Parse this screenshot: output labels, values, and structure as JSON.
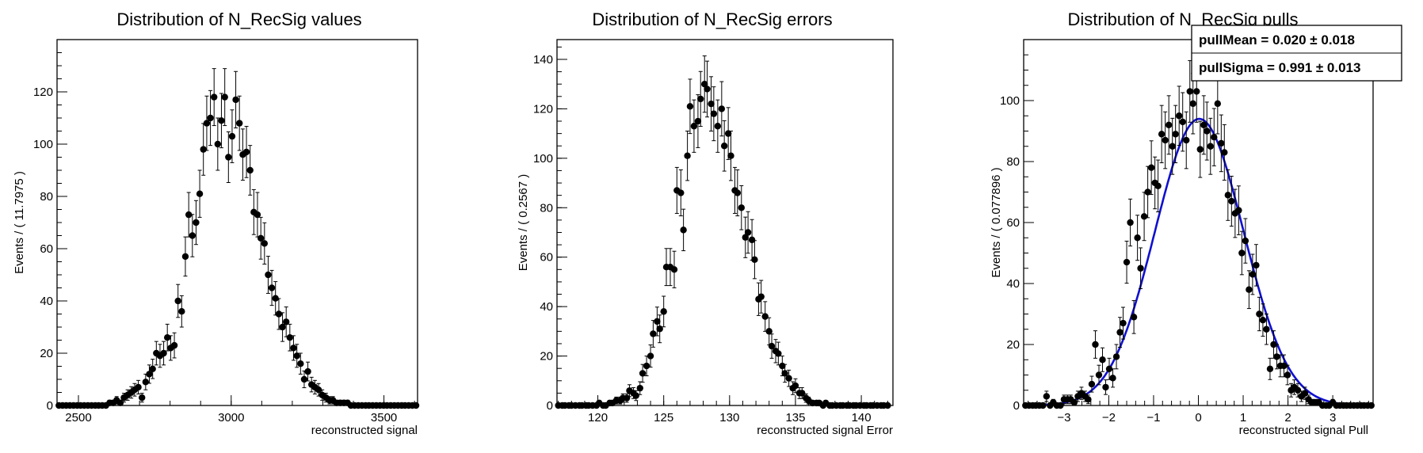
{
  "chart_data": [
    {
      "type": "scatter",
      "title": "Distribution of N_RecSig values",
      "xlabel": "reconstructed signal",
      "ylabel": "Events / ( 11.7975 )",
      "xlim": [
        2430,
        3610
      ],
      "ylim": [
        0,
        140
      ],
      "xticks": [
        2500,
        3000,
        3500
      ],
      "yticks": [
        0,
        20,
        40,
        60,
        80,
        100,
        120
      ],
      "series": [
        {
          "x": [
            2436,
            2448,
            2460,
            2472,
            2484,
            2496,
            2507,
            2519,
            2531,
            2543,
            2555,
            2566,
            2578,
            2590,
            2602,
            2614,
            2625,
            2637,
            2649,
            2661,
            2673,
            2684,
            2696,
            2708,
            2720,
            2732,
            2743,
            2755,
            2767,
            2779,
            2791,
            2802,
            2814,
            2826,
            2838,
            2850,
            2861,
            2873,
            2885,
            2897,
            2909,
            2920,
            2932,
            2944,
            2956,
            2968,
            2979,
            2991,
            3003,
            3015,
            3027,
            3038,
            3050,
            3062,
            3074,
            3086,
            3097,
            3109,
            3121,
            3133,
            3145,
            3156,
            3168,
            3180,
            3192,
            3204,
            3215,
            3227,
            3239,
            3251,
            3263,
            3274,
            3286,
            3298,
            3310,
            3322,
            3333,
            3345,
            3357,
            3369,
            3381,
            3392,
            3404,
            3416,
            3428,
            3440,
            3451,
            3463,
            3475,
            3487,
            3499,
            3510,
            3522,
            3534,
            3546,
            3558,
            3569,
            3581,
            3593,
            3605
          ],
          "y": [
            0,
            0,
            0,
            0,
            0,
            0,
            0,
            0,
            0,
            0,
            0,
            0,
            0,
            0,
            1,
            1,
            2,
            1,
            3,
            4,
            5,
            6,
            7,
            3,
            9,
            12,
            14,
            20,
            19,
            20,
            26,
            22,
            23,
            40,
            36,
            57,
            73,
            65,
            70,
            81,
            98,
            108,
            110,
            118,
            100,
            109,
            118,
            95,
            103,
            117,
            108,
            96,
            97,
            90,
            74,
            73,
            64,
            62,
            50,
            45,
            41,
            35,
            30,
            32,
            26,
            22,
            19,
            16,
            10,
            13,
            8,
            7,
            6,
            4,
            3,
            2,
            2,
            1,
            1,
            1,
            1,
            0,
            0,
            0,
            0,
            0,
            0,
            0,
            0,
            0,
            0,
            0,
            0,
            0,
            0,
            0,
            0,
            0,
            0,
            0
          ],
          "yerr": [
            0,
            0,
            0,
            0,
            0,
            0,
            0,
            0,
            0,
            0,
            0,
            0,
            0,
            0,
            1,
            1,
            1.4,
            1,
            1.7,
            2,
            2.2,
            2.4,
            2.6,
            1.7,
            3,
            3.5,
            3.7,
            4.5,
            4.4,
            4.5,
            5.1,
            4.7,
            4.8,
            6.3,
            6,
            7.5,
            8.5,
            8.1,
            8.4,
            9,
            9.9,
            10.4,
            10.5,
            10.9,
            10,
            10.4,
            10.9,
            9.7,
            10.1,
            10.8,
            10.4,
            9.8,
            9.8,
            9.5,
            8.6,
            8.5,
            8,
            7.9,
            7.1,
            6.7,
            6.4,
            5.9,
            5.5,
            5.7,
            5.1,
            4.7,
            4.4,
            4,
            3.2,
            3.6,
            2.8,
            2.6,
            2.4,
            2,
            1.7,
            1.4,
            1.4,
            1,
            1,
            1,
            1,
            0,
            0,
            0,
            0,
            0,
            0,
            0,
            0,
            0,
            0,
            0,
            0,
            0,
            0,
            0,
            0,
            0,
            0,
            0
          ]
        }
      ]
    },
    {
      "type": "scatter",
      "title": "Distribution of N_RecSig errors",
      "xlabel": "reconstructed signal Error",
      "ylabel": "Events / ( 0.2567 )",
      "xlim": [
        116.9,
        142.4
      ],
      "ylim": [
        0,
        148
      ],
      "xticks": [
        120,
        125,
        130,
        135,
        140
      ],
      "yticks": [
        0,
        20,
        40,
        60,
        80,
        100,
        120,
        140
      ],
      "series": [
        {
          "x": [
            117.0,
            117.3,
            117.5,
            117.8,
            118.0,
            118.3,
            118.6,
            118.8,
            119.1,
            119.3,
            119.6,
            119.9,
            120.1,
            120.4,
            120.6,
            120.9,
            121.1,
            121.4,
            121.7,
            121.9,
            122.2,
            122.4,
            122.7,
            122.9,
            123.2,
            123.4,
            123.7,
            124.0,
            124.2,
            124.5,
            124.7,
            125.0,
            125.2,
            125.5,
            125.8,
            126.0,
            126.3,
            126.5,
            126.8,
            127.0,
            127.3,
            127.6,
            127.8,
            128.1,
            128.3,
            128.6,
            128.8,
            129.1,
            129.4,
            129.6,
            129.9,
            130.1,
            130.4,
            130.6,
            130.9,
            131.2,
            131.4,
            131.7,
            131.9,
            132.2,
            132.4,
            132.7,
            133.0,
            133.2,
            133.5,
            133.7,
            134.0,
            134.2,
            134.5,
            134.8,
            135.0,
            135.3,
            135.5,
            135.8,
            136.0,
            136.3,
            136.6,
            136.8,
            137.1,
            137.3,
            137.6,
            137.8,
            138.1,
            138.4,
            138.6,
            138.9,
            139.1,
            139.4,
            139.6,
            139.9,
            140.2,
            140.4,
            140.7,
            140.9,
            141.2,
            141.5,
            141.7,
            142.0
          ],
          "y": [
            0,
            0,
            0,
            0,
            0,
            0,
            0,
            0,
            0,
            0,
            0,
            0,
            1,
            0,
            0,
            1,
            1,
            2,
            2,
            3,
            3,
            6,
            5,
            4,
            7,
            13,
            16,
            20,
            29,
            34,
            31,
            38,
            56,
            56,
            55,
            87,
            86,
            71,
            101,
            121,
            113,
            115,
            124,
            130,
            128,
            122,
            118,
            113,
            120,
            105,
            110,
            101,
            87,
            86,
            80,
            68,
            70,
            67,
            59,
            43,
            44,
            36,
            30,
            24,
            22,
            21,
            16,
            13,
            11,
            7,
            8,
            5,
            5,
            3,
            2,
            1,
            1,
            1,
            0,
            1,
            0,
            0,
            0,
            0,
            0,
            0,
            0,
            0,
            0,
            0,
            0,
            0,
            0,
            0,
            0,
            0,
            0,
            0
          ],
          "yerr": [
            0,
            0,
            0,
            0,
            0,
            0,
            0,
            0,
            0,
            0,
            0,
            0,
            1,
            0,
            0,
            1,
            1,
            1.4,
            1.4,
            1.7,
            1.7,
            2.4,
            2.2,
            2,
            2.6,
            3.6,
            4,
            4.5,
            5.4,
            5.8,
            5.6,
            6.2,
            7.5,
            7.5,
            7.4,
            9.3,
            9.3,
            8.4,
            10,
            11,
            10.6,
            10.7,
            11.1,
            11.4,
            11.3,
            11,
            10.9,
            10.6,
            11,
            10.2,
            10.5,
            10,
            9.3,
            9.3,
            8.9,
            8.2,
            8.4,
            8.2,
            7.7,
            6.6,
            6.6,
            6,
            5.5,
            4.9,
            4.7,
            4.6,
            4,
            3.6,
            3.3,
            2.6,
            2.8,
            2.2,
            2.2,
            1.7,
            1.4,
            1,
            1,
            1,
            0,
            1,
            0,
            0,
            0,
            0,
            0,
            0,
            0,
            0,
            0,
            0,
            0,
            0,
            0,
            0,
            0,
            0,
            0,
            0
          ]
        }
      ]
    },
    {
      "type": "scatter",
      "title": "Distribution of N_RecSig pulls",
      "xlabel": "reconstructed signal Pull",
      "ylabel": "Events / ( 0.077896 )",
      "xlim": [
        -3.9,
        3.9
      ],
      "ylim": [
        0,
        120
      ],
      "xticks": [
        -3,
        -2,
        -1,
        0,
        1,
        2,
        3
      ],
      "yticks": [
        0,
        20,
        40,
        60,
        80,
        100
      ],
      "fit": {
        "mean": 0.02,
        "sigma": 0.991,
        "peak": 94,
        "color": "#1010d0"
      },
      "stats": [
        {
          "label": "pullMean =  0.020 ± 0.018"
        },
        {
          "label": "pullSigma =  0.991 ± 0.013"
        }
      ],
      "series": [
        {
          "x": [
            -3.86,
            -3.78,
            -3.7,
            -3.63,
            -3.55,
            -3.47,
            -3.39,
            -3.31,
            -3.24,
            -3.16,
            -3.08,
            -3.0,
            -2.92,
            -2.85,
            -2.77,
            -2.69,
            -2.61,
            -2.53,
            -2.46,
            -2.38,
            -2.3,
            -2.22,
            -2.14,
            -2.07,
            -1.99,
            -1.91,
            -1.83,
            -1.75,
            -1.68,
            -1.6,
            -1.52,
            -1.44,
            -1.36,
            -1.29,
            -1.21,
            -1.13,
            -1.05,
            -0.97,
            -0.9,
            -0.82,
            -0.74,
            -0.66,
            -0.58,
            -0.51,
            -0.43,
            -0.35,
            -0.27,
            -0.19,
            -0.12,
            -0.04,
            0.04,
            0.12,
            0.19,
            0.27,
            0.35,
            0.43,
            0.51,
            0.58,
            0.66,
            0.74,
            0.82,
            0.9,
            0.97,
            1.05,
            1.13,
            1.21,
            1.29,
            1.36,
            1.44,
            1.52,
            1.6,
            1.68,
            1.75,
            1.83,
            1.91,
            1.99,
            2.07,
            2.14,
            2.22,
            2.3,
            2.38,
            2.46,
            2.53,
            2.61,
            2.69,
            2.77,
            2.85,
            2.92,
            3.0,
            3.08,
            3.16,
            3.24,
            3.31,
            3.39,
            3.47,
            3.55,
            3.63,
            3.7,
            3.78,
            3.86
          ],
          "y": [
            0,
            0,
            0,
            0,
            0,
            0,
            3,
            0,
            1,
            0,
            0,
            2,
            2,
            2,
            1,
            3,
            4,
            3,
            2,
            7,
            20,
            10,
            15,
            6,
            12,
            9,
            16,
            24,
            27,
            47,
            60,
            29,
            55,
            45,
            62,
            70,
            78,
            73,
            72,
            89,
            87,
            92,
            85,
            89,
            95,
            93,
            87,
            103,
            99,
            103,
            84,
            92,
            90,
            85,
            88,
            99,
            86,
            83,
            69,
            67,
            63,
            64,
            50,
            54,
            38,
            43,
            46,
            30,
            28,
            25,
            12,
            20,
            16,
            13,
            13,
            10,
            5,
            6,
            5,
            3,
            4,
            2,
            1,
            1,
            1,
            0,
            0,
            0,
            1,
            0,
            0,
            0,
            0,
            0,
            0,
            0,
            0,
            0,
            0,
            0
          ],
          "yerr": [
            0,
            0,
            0,
            0,
            0,
            0,
            1.7,
            0,
            1,
            0,
            0,
            1.4,
            1.4,
            1.4,
            1,
            1.7,
            2,
            1.7,
            1.4,
            2.6,
            4.5,
            3.2,
            3.9,
            2.4,
            3.5,
            3,
            4,
            4.9,
            5.2,
            6.9,
            7.7,
            5.4,
            7.4,
            6.7,
            7.9,
            8.4,
            8.8,
            8.5,
            8.5,
            9.4,
            9.3,
            9.6,
            9.2,
            9.4,
            9.7,
            9.6,
            9.3,
            10.1,
            9.9,
            10.1,
            9.2,
            9.6,
            9.5,
            9.2,
            9.4,
            9.9,
            9.3,
            9.1,
            8.3,
            8.2,
            7.9,
            8,
            7.1,
            7.3,
            6.2,
            6.6,
            6.8,
            5.5,
            5.3,
            5,
            3.5,
            4.5,
            4,
            3.6,
            3.6,
            3.2,
            2.2,
            2.4,
            2.2,
            1.7,
            2,
            1.4,
            1,
            1,
            1,
            0,
            0,
            0,
            1,
            0,
            0,
            0,
            0,
            0,
            0,
            0,
            0,
            0,
            0,
            0
          ]
        }
      ]
    }
  ]
}
